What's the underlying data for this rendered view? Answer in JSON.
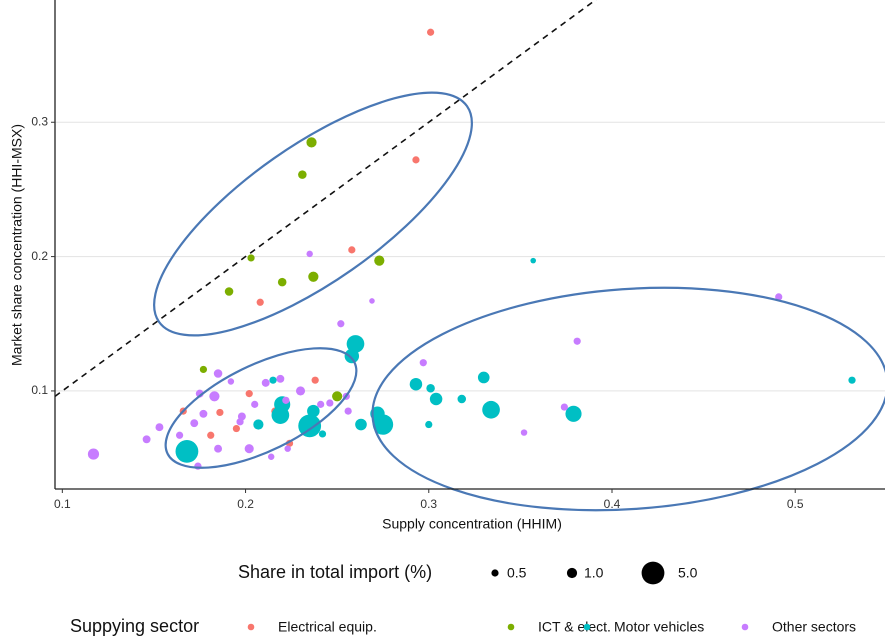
{
  "chart_data": {
    "type": "scatter",
    "x_label": "Supply concentration (HHIM)",
    "y_label": "Market share concentration (HHI-MSX)",
    "xlim": [
      0.096,
      0.549
    ],
    "ylim": [
      0.027,
      0.391
    ],
    "xticks": [
      0.1,
      0.2,
      0.3,
      0.4,
      0.5
    ],
    "yticks": [
      0.1,
      0.2,
      0.3
    ],
    "grid": "y",
    "reference_line": {
      "slope": 1,
      "intercept": 0
    },
    "size_legend": {
      "title": "Share in total import (%)",
      "values": [
        0.5,
        {
          "value": 1,
          "label": "1.0"
        },
        {
          "value": 5,
          "label": "5.0"
        }
      ]
    },
    "legend_title": "Suppying sector",
    "series": [
      {
        "name": "Electrical equip.",
        "color": "#F8766D",
        "x": [
          0.301,
          0.293,
          0.258,
          0.208,
          0.238,
          0.186,
          0.166,
          0.216,
          0.224,
          0.181,
          0.202,
          0.195
        ],
        "values": [
          0.367,
          0.272,
          0.205,
          0.166,
          0.108,
          0.084,
          0.085,
          0.085,
          0.061,
          0.067,
          0.098,
          0.072
        ],
        "sizes": [
          0.5,
          0.5,
          0.5,
          0.5,
          0.5,
          0.5,
          0.5,
          0.5,
          0.5,
          0.5,
          0.5,
          0.5
        ]
      },
      {
        "name": "ICT & elect.",
        "color": "#7CAE00",
        "x": [
          0.236,
          0.231,
          0.203,
          0.191,
          0.22,
          0.237,
          0.273,
          0.177,
          0.25
        ],
        "values": [
          0.285,
          0.261,
          0.199,
          0.174,
          0.181,
          0.185,
          0.197,
          0.116,
          0.096
        ],
        "sizes": [
          1,
          0.7,
          0.5,
          0.7,
          0.7,
          1,
          1,
          0.5,
          1
        ]
      },
      {
        "name": "Motor vehicles",
        "color": "#00BFC4",
        "x": [
          0.357,
          0.26,
          0.258,
          0.33,
          0.293,
          0.301,
          0.304,
          0.318,
          0.334,
          0.379,
          0.531,
          0.3,
          0.272,
          0.275,
          0.263,
          0.168,
          0.22,
          0.219,
          0.235,
          0.237,
          0.207,
          0.215,
          0.242
        ],
        "values": [
          0.197,
          0.135,
          0.126,
          0.11,
          0.105,
          0.102,
          0.094,
          0.094,
          0.086,
          0.083,
          0.108,
          0.075,
          0.083,
          0.075,
          0.075,
          0.055,
          0.09,
          0.082,
          0.074,
          0.085,
          0.075,
          0.108,
          0.068
        ],
        "sizes": [
          0.3,
          3,
          2,
          1.3,
          1.5,
          0.7,
          1.5,
          0.7,
          3,
          2.5,
          0.5,
          0.5,
          2,
          4,
          1.3,
          5,
          2.5,
          3,
          5,
          1.5,
          1,
          0.5,
          0.5
        ]
      },
      {
        "name": "Other sectors",
        "color": "#C77CFF",
        "x": [
          0.117,
          0.491,
          0.381,
          0.297,
          0.352,
          0.374,
          0.235,
          0.269,
          0.252,
          0.146,
          0.153,
          0.172,
          0.183,
          0.185,
          0.192,
          0.175,
          0.177,
          0.185,
          0.174,
          0.202,
          0.211,
          0.219,
          0.23,
          0.222,
          0.198,
          0.205,
          0.241,
          0.246,
          0.255,
          0.256,
          0.223,
          0.197,
          0.214,
          0.164
        ],
        "values": [
          0.053,
          0.17,
          0.137,
          0.121,
          0.069,
          0.088,
          0.202,
          0.167,
          0.15,
          0.064,
          0.073,
          0.076,
          0.096,
          0.113,
          0.107,
          0.098,
          0.083,
          0.057,
          0.044,
          0.057,
          0.106,
          0.109,
          0.1,
          0.093,
          0.081,
          0.09,
          0.09,
          0.091,
          0.096,
          0.085,
          0.057,
          0.077,
          0.051,
          0.067
        ],
        "sizes": [
          1.2,
          0.5,
          0.5,
          0.5,
          0.4,
          0.5,
          0.4,
          0.3,
          0.5,
          0.6,
          0.6,
          0.6,
          1,
          0.7,
          0.4,
          0.6,
          0.6,
          0.6,
          0.5,
          0.8,
          0.6,
          0.6,
          0.8,
          0.5,
          0.6,
          0.5,
          0.5,
          0.5,
          0.5,
          0.5,
          0.4,
          0.5,
          0.4,
          0.5
        ]
      }
    ]
  }
}
